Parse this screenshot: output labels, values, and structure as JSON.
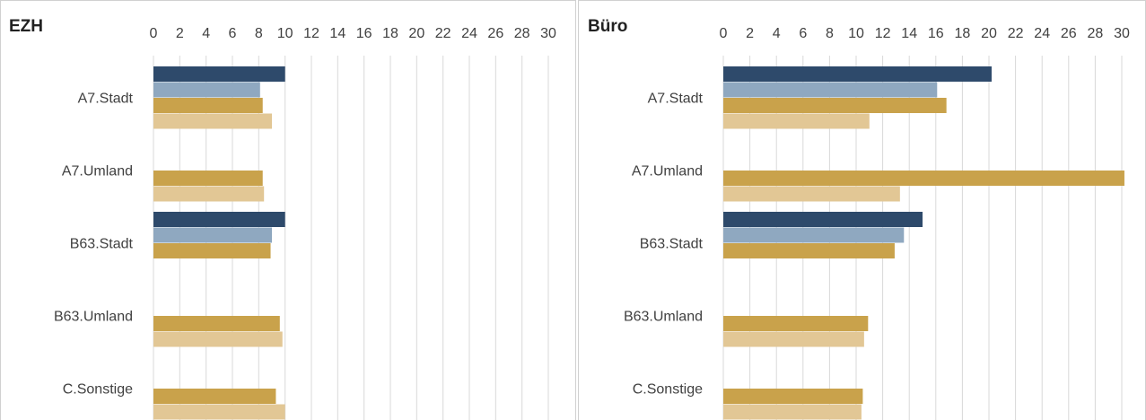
{
  "chart_data": [
    {
      "type": "bar",
      "orientation": "horizontal",
      "title": "EZH",
      "categories": [
        "A7.Stadt",
        "A7.Umland",
        "B63.Stadt",
        "B63.Umland",
        "C.Sonstige"
      ],
      "series": [
        {
          "color": "#2e4a6b",
          "values": [
            10.0,
            null,
            10.0,
            null,
            null
          ]
        },
        {
          "color": "#8fa8c0",
          "values": [
            8.1,
            null,
            9.0,
            null,
            null
          ]
        },
        {
          "color": "#c9a24b",
          "values": [
            8.3,
            8.3,
            8.9,
            9.6,
            9.3
          ]
        },
        {
          "color": "#e2c795",
          "values": [
            9.0,
            8.4,
            null,
            9.8,
            10.0
          ]
        }
      ],
      "xlim": [
        0,
        30
      ],
      "xticks": [
        0,
        2,
        4,
        6,
        8,
        10,
        12,
        14,
        16,
        18,
        20,
        22,
        24,
        26,
        28,
        30
      ],
      "grid": true
    },
    {
      "type": "bar",
      "orientation": "horizontal",
      "title": "Büro",
      "categories": [
        "A7.Stadt",
        "A7.Umland",
        "B63.Stadt",
        "B63.Umland",
        "C.Sonstige"
      ],
      "series": [
        {
          "color": "#2e4a6b",
          "values": [
            20.2,
            null,
            15.0,
            null,
            null
          ]
        },
        {
          "color": "#8fa8c0",
          "values": [
            16.1,
            null,
            13.6,
            null,
            null
          ]
        },
        {
          "color": "#c9a24b",
          "values": [
            16.8,
            30.2,
            12.9,
            10.9,
            10.5
          ]
        },
        {
          "color": "#e2c795",
          "values": [
            11.0,
            13.3,
            null,
            10.6,
            10.4
          ]
        }
      ],
      "xlim": [
        0,
        30
      ],
      "xticks": [
        0,
        2,
        4,
        6,
        8,
        10,
        12,
        14,
        16,
        18,
        20,
        22,
        24,
        26,
        28,
        30
      ],
      "grid": true
    }
  ]
}
